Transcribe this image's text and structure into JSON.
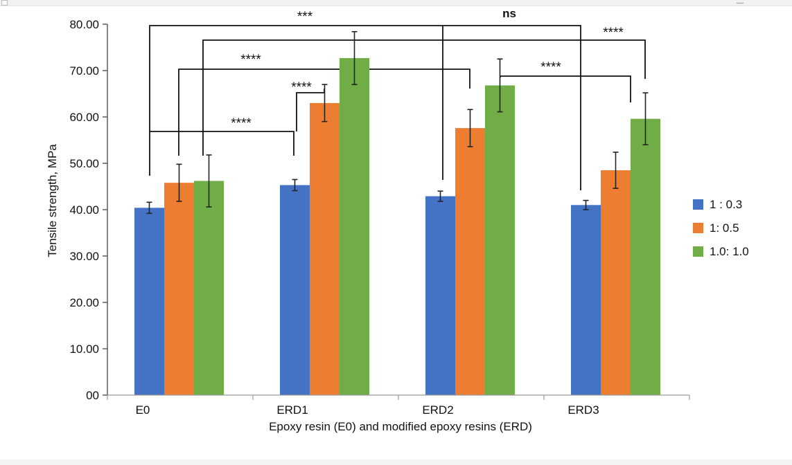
{
  "chart_data": {
    "type": "bar",
    "categories": [
      "E0",
      "ERD1",
      "ERD2",
      "ERD3"
    ],
    "ylabel": "Tensile strength, MPa",
    "xlabel": "Epoxy resin (E0) and modified epoxy resins (ERD)",
    "ylim": [
      0,
      80
    ],
    "yticks": [
      "00",
      "10.00",
      "20.00",
      "30.00",
      "40.00",
      "50.00",
      "60.00",
      "70.00",
      "80.00"
    ],
    "grid": false,
    "legend_position": "right",
    "series": [
      {
        "name": "1 : 0.3",
        "color": "#4472C4",
        "values": [
          40.4,
          45.3,
          42.9,
          41.0
        ],
        "errors": [
          1.2,
          1.2,
          1.1,
          1.0
        ]
      },
      {
        "name": "1: 0.5",
        "color": "#ED7D31",
        "values": [
          45.8,
          63.0,
          57.6,
          48.5
        ],
        "errors": [
          4.0,
          4.0,
          4.0,
          3.9
        ]
      },
      {
        "name": "1.0: 1.0",
        "color": "#70AD47",
        "values": [
          46.2,
          72.7,
          66.8,
          59.6
        ],
        "errors": [
          5.6,
          5.7,
          5.7,
          5.6
        ]
      }
    ],
    "annotations": [
      {
        "text": "***"
      },
      {
        "text": "ns"
      },
      {
        "text": "****"
      },
      {
        "text": "****"
      },
      {
        "text": "****"
      },
      {
        "text": "****"
      },
      {
        "text": "****"
      }
    ]
  }
}
